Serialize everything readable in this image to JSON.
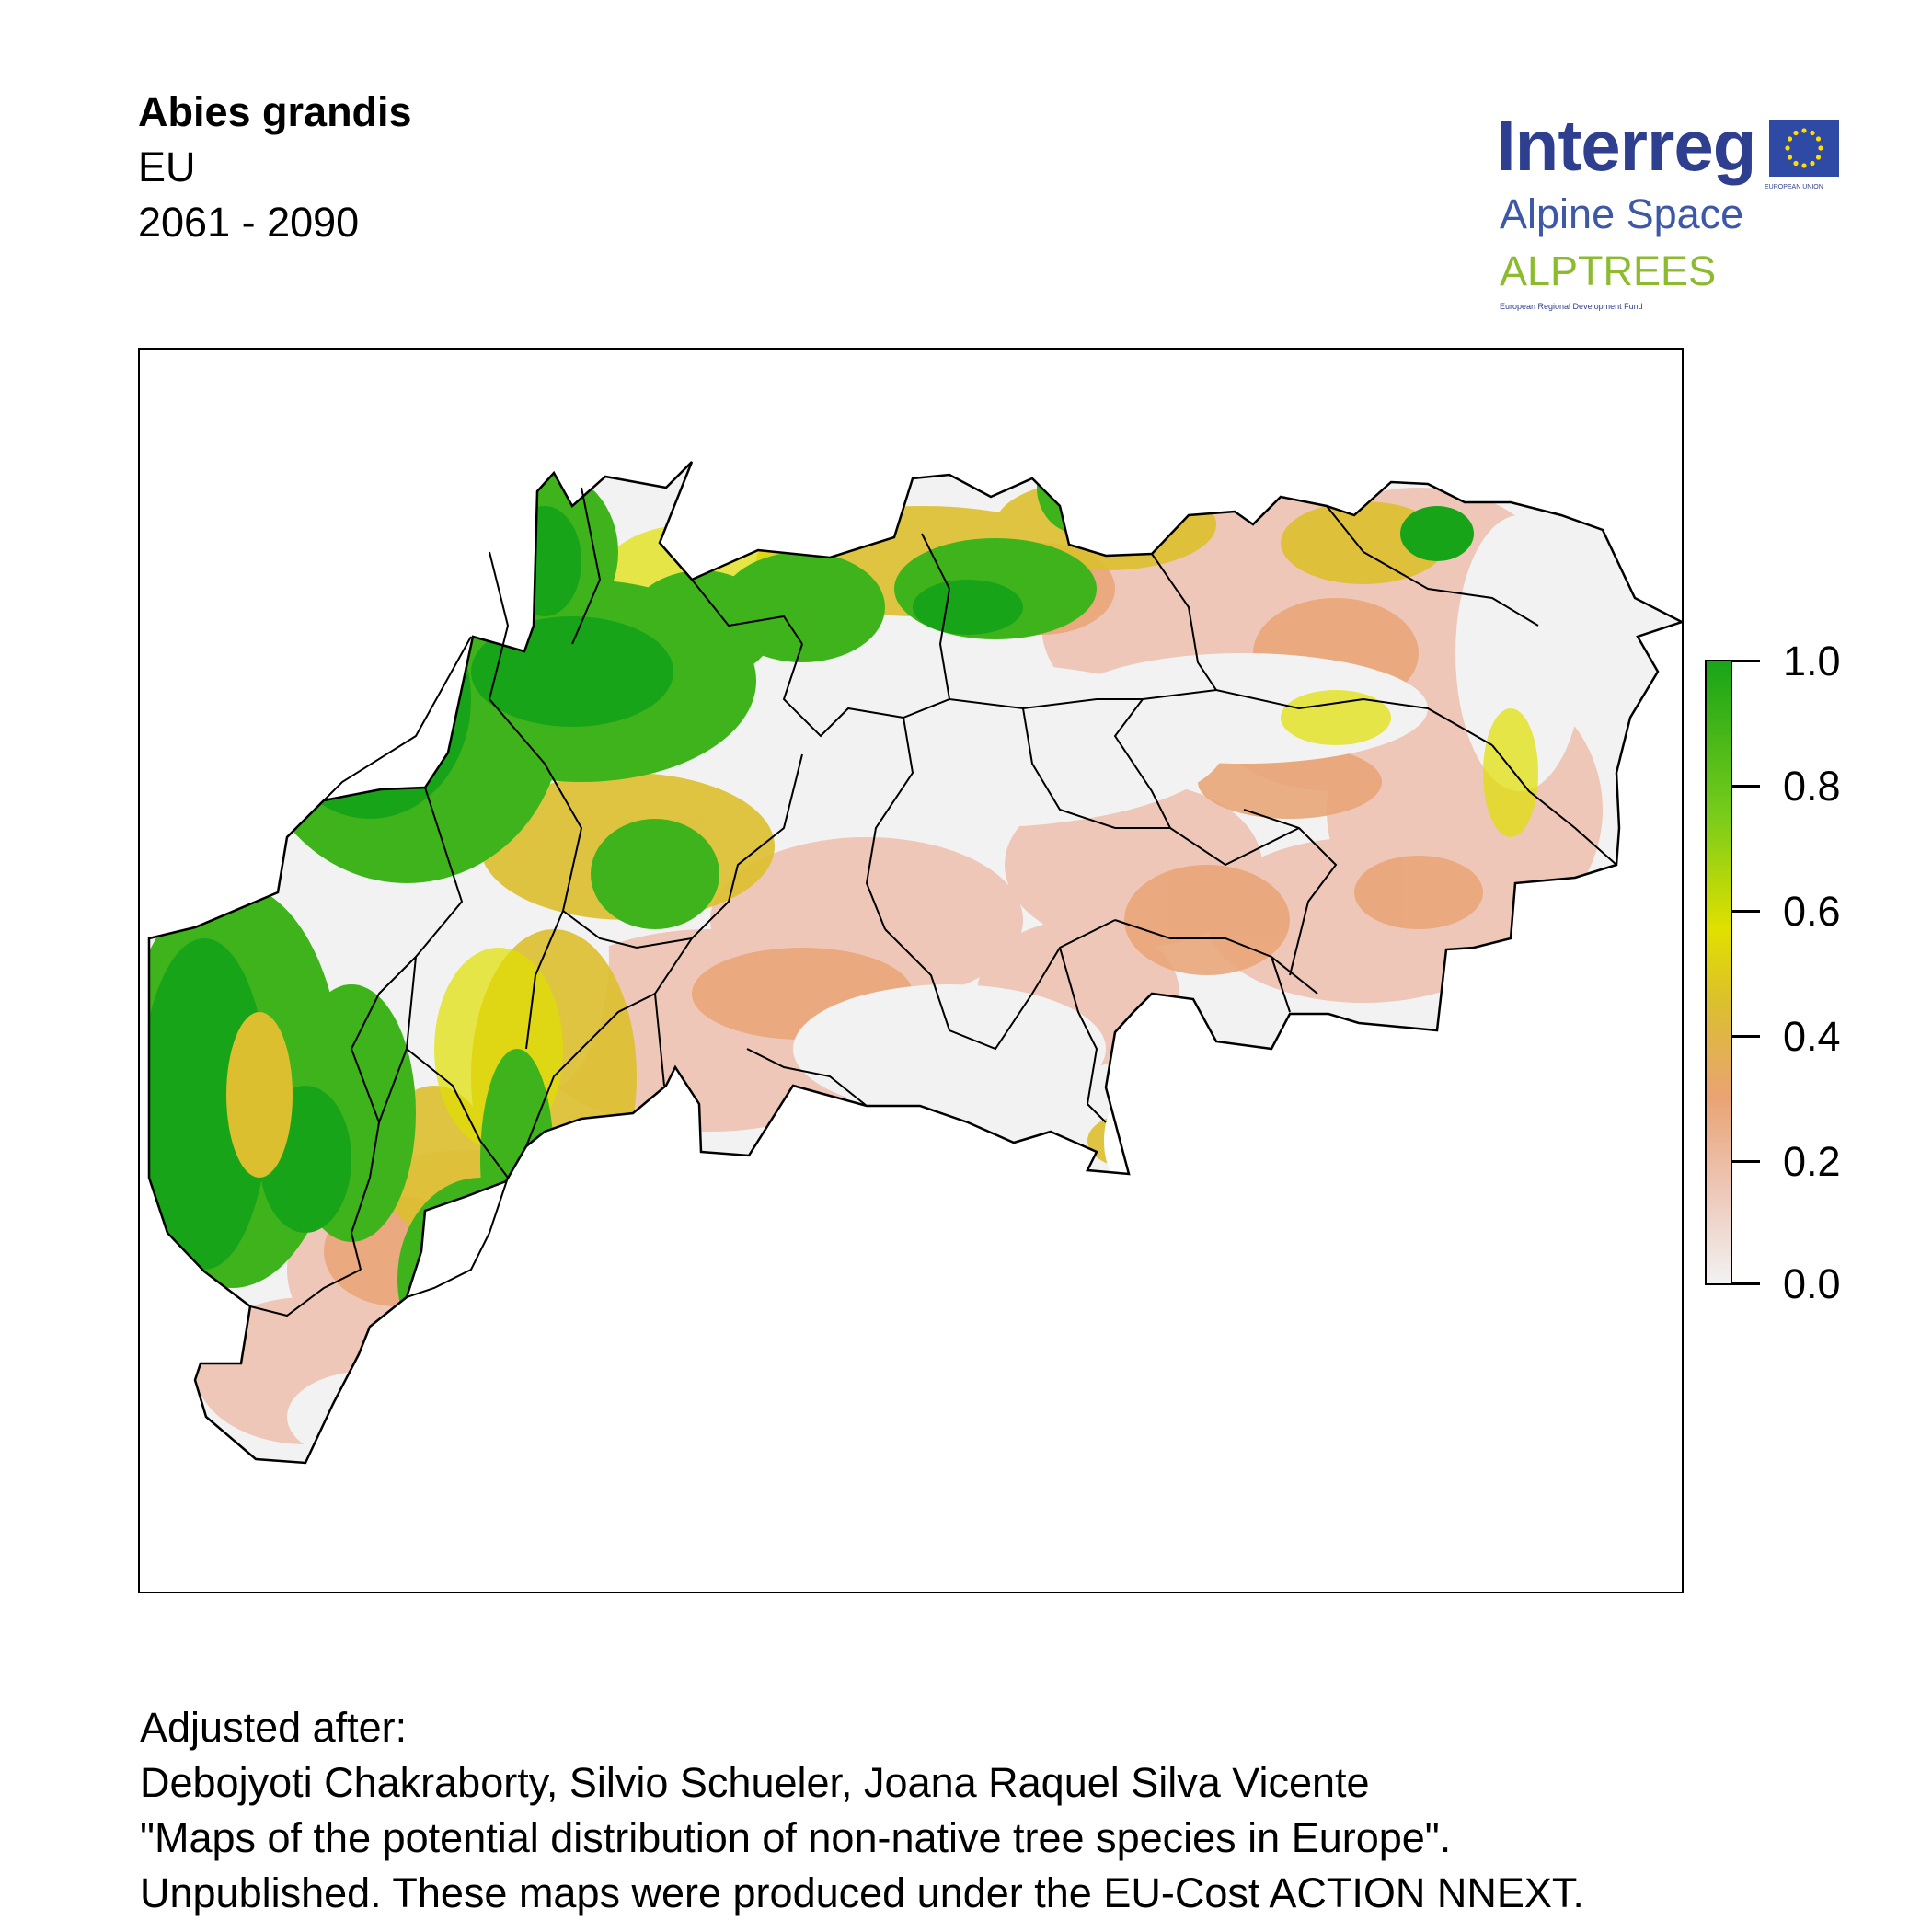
{
  "header": {
    "species": "Abies grandis",
    "region": "EU",
    "period": "2061 - 2090"
  },
  "logo": {
    "brand": "Interreg",
    "program": "Alpine Space",
    "project": "ALPTREES",
    "fund": "European Regional Development Fund",
    "eu_label": "EUROPEAN UNION",
    "colors": {
      "brand": "#2f3f8f",
      "project": "#8cbb2e",
      "flag": "#2f4aa4",
      "stars": "#ffdd00"
    }
  },
  "map": {
    "type": "suitability-raster",
    "colors": {
      "low": "#f2f2f2",
      "pink": "#eec7b8",
      "salmon": "#e9a373",
      "ochre": "#dcbf2e",
      "yellow": "#e0e000",
      "lightgreen": "#7acc1a",
      "green": "#18a418",
      "border": "#000000"
    }
  },
  "legend": {
    "ticks": [
      "1.0",
      "0.8",
      "0.6",
      "0.4",
      "0.2",
      "0.0"
    ],
    "range": [
      0.0,
      1.0
    ]
  },
  "footer": {
    "lines": [
      "Adjusted after:",
      "Debojyoti Chakraborty, Silvio Schueler, Joana Raquel Silva Vicente",
      "\"Maps of the potential distribution of non-native tree species in Europe\".",
      "Unpublished. These maps were produced under the EU-Cost ACTION NNEXT."
    ]
  }
}
